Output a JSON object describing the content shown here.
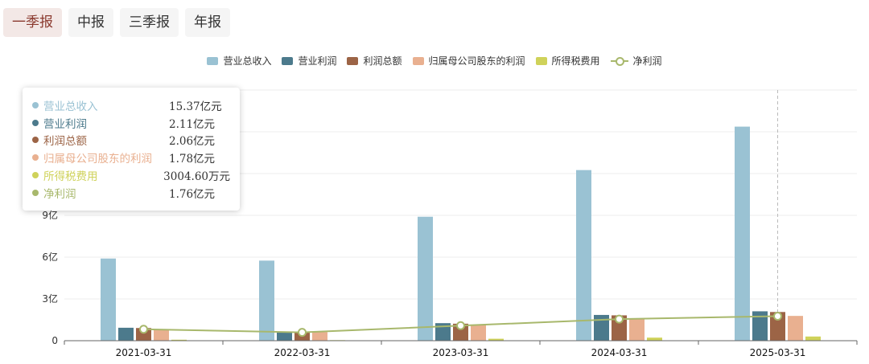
{
  "tabs": [
    {
      "label": "一季报",
      "active": true
    },
    {
      "label": "中报",
      "active": false
    },
    {
      "label": "三季报",
      "active": false
    },
    {
      "label": "年报",
      "active": false
    }
  ],
  "legend": [
    {
      "label": "营业总收入",
      "color": "#9ac2d3",
      "kind": "bar"
    },
    {
      "label": "营业利润",
      "color": "#4c7a8c",
      "kind": "bar"
    },
    {
      "label": "利润总额",
      "color": "#9c6446",
      "kind": "bar"
    },
    {
      "label": "归属母公司股东的利润",
      "color": "#e9b090",
      "kind": "bar"
    },
    {
      "label": "所得税费用",
      "color": "#cfd25a",
      "kind": "bar"
    },
    {
      "label": "净利润",
      "color": "#a8b86c",
      "kind": "line"
    }
  ],
  "tooltip": {
    "rows": [
      {
        "name": "营业总收入",
        "value": "15.37亿元",
        "color": "#9ac2d3"
      },
      {
        "name": "营业利润",
        "value": "2.11亿元",
        "color": "#4c7a8c"
      },
      {
        "name": "利润总额",
        "value": "2.06亿元",
        "color": "#9c6446"
      },
      {
        "name": "归属母公司股东的利润",
        "value": "1.78亿元",
        "color": "#e9b090"
      },
      {
        "name": "所得税费用",
        "value": "3004.60万元",
        "color": "#cfd25a"
      },
      {
        "name": "净利润",
        "value": "1.76亿元",
        "color": "#a8b86c"
      }
    ]
  },
  "chart_data": {
    "type": "bar",
    "categories": [
      "2021-03-31",
      "2022-03-31",
      "2023-03-31",
      "2024-03-31",
      "2025-03-31"
    ],
    "yticks": [
      "0",
      "3亿",
      "6亿",
      "9亿"
    ],
    "ylim": [
      0,
      18
    ],
    "unit": "亿",
    "highlight_category": "2025-03-31",
    "series": [
      {
        "name": "营业总收入",
        "kind": "bar",
        "color": "#9ac2d3",
        "values": [
          5.9,
          5.75,
          8.9,
          12.25,
          15.37
        ]
      },
      {
        "name": "营业利润",
        "kind": "bar",
        "color": "#4c7a8c",
        "values": [
          0.93,
          0.62,
          1.26,
          1.85,
          2.11
        ]
      },
      {
        "name": "利润总额",
        "kind": "bar",
        "color": "#9c6446",
        "values": [
          0.91,
          0.66,
          1.22,
          1.82,
          2.06
        ]
      },
      {
        "name": "归属母公司股东的利润",
        "kind": "bar",
        "color": "#e9b090",
        "values": [
          0.82,
          0.62,
          1.15,
          1.6,
          1.78
        ]
      },
      {
        "name": "所得税费用",
        "kind": "bar",
        "color": "#cfd25a",
        "values": [
          0.07,
          0.04,
          0.14,
          0.22,
          0.3005
        ]
      },
      {
        "name": "净利润",
        "kind": "line",
        "color": "#a8b86c",
        "values": [
          0.82,
          0.6,
          1.08,
          1.55,
          1.76
        ]
      }
    ]
  }
}
